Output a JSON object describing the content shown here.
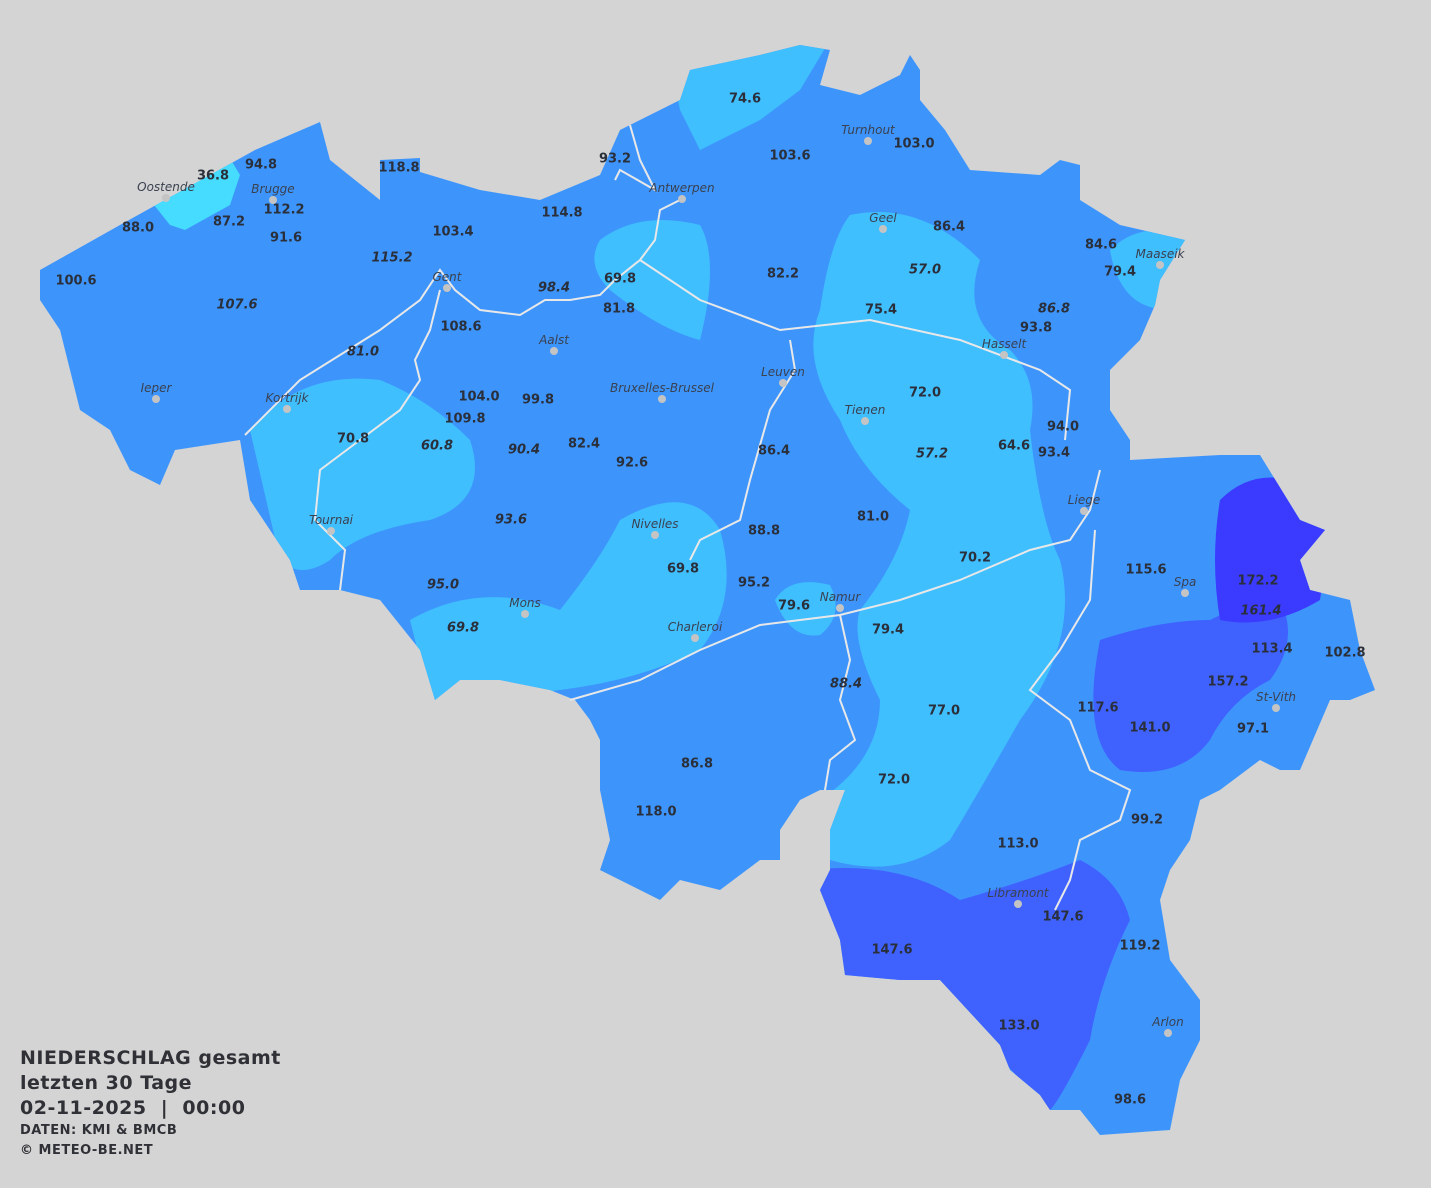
{
  "title": {
    "line1": "NIEDERSCHLAG gesamt",
    "line2": "letzten 30 Tage",
    "datetime": "02-11-2025  |  00:00",
    "source": "DATEN: KMI & BMCB",
    "copyright": "© METEO-BE.NET"
  },
  "colors": {
    "background": "#d4d4d4",
    "base_precip": "#3d95fc",
    "low_precip": "#40bfff",
    "very_low_precip": "#45dcff",
    "high_precip": "#3f62ff",
    "very_high_precip": "#3b3bff",
    "rivers": "#e8e8e8"
  },
  "cities": [
    "Oostende",
    "Brugge",
    "Antwerpen",
    "Turnhout",
    "Geel",
    "Maaseik",
    "Gent",
    "Aalst",
    "Hasselt",
    "Leuven",
    "Bruxelles-Brussel",
    "Ieper",
    "Kortrijk",
    "Tienen",
    "Liege",
    "Tournai",
    "Nivelles",
    "Spa",
    "Namur",
    "Mons",
    "Charleroi",
    "St-Vith",
    "Libramont",
    "Arlon"
  ],
  "stations": [
    {
      "v": "74.6"
    },
    {
      "v": "93.2"
    },
    {
      "v": "103.6"
    },
    {
      "v": "103.0"
    },
    {
      "v": "94.8"
    },
    {
      "v": "36.8"
    },
    {
      "v": "118.8"
    },
    {
      "v": "112.2"
    },
    {
      "v": "87.2"
    },
    {
      "v": "88.0"
    },
    {
      "v": "91.6"
    },
    {
      "v": "114.8"
    },
    {
      "v": "103.4"
    },
    {
      "v": "115.2",
      "italic": true
    },
    {
      "v": "100.6"
    },
    {
      "v": "107.6",
      "italic": true
    },
    {
      "v": "98.4",
      "italic": true
    },
    {
      "v": "69.8"
    },
    {
      "v": "81.8"
    },
    {
      "v": "82.2"
    },
    {
      "v": "86.4"
    },
    {
      "v": "57.0",
      "italic": true
    },
    {
      "v": "84.6"
    },
    {
      "v": "79.4"
    },
    {
      "v": "75.4"
    },
    {
      "v": "86.8",
      "italic": true
    },
    {
      "v": "93.8"
    },
    {
      "v": "108.6"
    },
    {
      "v": "81.0",
      "italic": true
    },
    {
      "v": "104.0"
    },
    {
      "v": "99.8"
    },
    {
      "v": "109.8"
    },
    {
      "v": "72.0"
    },
    {
      "v": "60.8",
      "italic": true
    },
    {
      "v": "70.8"
    },
    {
      "v": "90.4",
      "italic": true
    },
    {
      "v": "82.4"
    },
    {
      "v": "92.6"
    },
    {
      "v": "86.4"
    },
    {
      "v": "57.2",
      "italic": true
    },
    {
      "v": "64.6"
    },
    {
      "v": "94.0"
    },
    {
      "v": "93.4"
    },
    {
      "v": "93.6",
      "italic": true
    },
    {
      "v": "81.0"
    },
    {
      "v": "88.8"
    },
    {
      "v": "69.8"
    },
    {
      "v": "70.2"
    },
    {
      "v": "95.0",
      "italic": true
    },
    {
      "v": "95.2"
    },
    {
      "v": "79.6"
    },
    {
      "v": "115.6"
    },
    {
      "v": "172.2"
    },
    {
      "v": "161.4",
      "italic": true
    },
    {
      "v": "69.8",
      "italic": true
    },
    {
      "v": "79.4"
    },
    {
      "v": "113.4"
    },
    {
      "v": "102.8"
    },
    {
      "v": "88.4",
      "italic": true
    },
    {
      "v": "157.2"
    },
    {
      "v": "77.0"
    },
    {
      "v": "117.6"
    },
    {
      "v": "141.0"
    },
    {
      "v": "97.1"
    },
    {
      "v": "86.8"
    },
    {
      "v": "72.0"
    },
    {
      "v": "118.0"
    },
    {
      "v": "99.2"
    },
    {
      "v": "113.0"
    },
    {
      "v": "147.6"
    },
    {
      "v": "147.6"
    },
    {
      "v": "119.2"
    },
    {
      "v": "133.0"
    },
    {
      "v": "98.6"
    }
  ]
}
